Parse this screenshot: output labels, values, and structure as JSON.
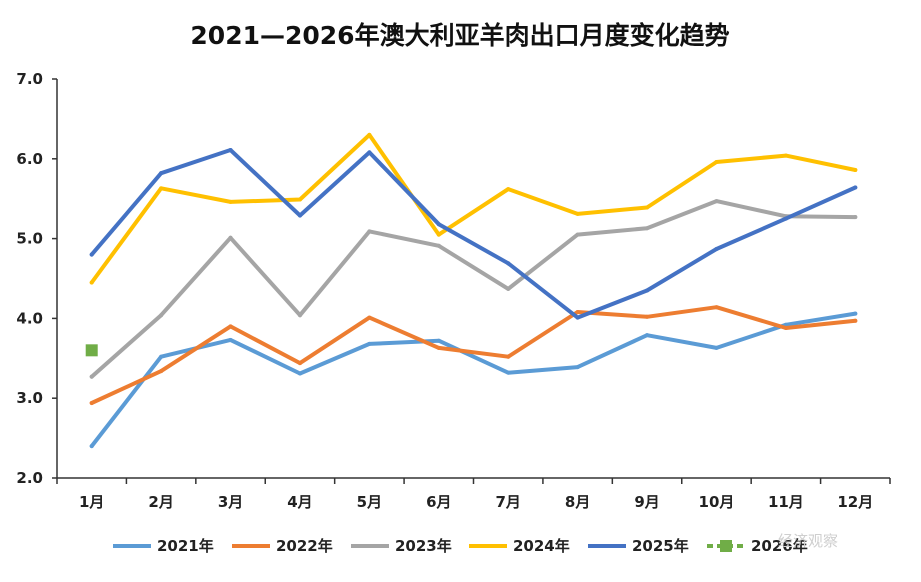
{
  "chart_data": {
    "type": "line",
    "title": "2021—2026年澳大利亚羊肉出口月度变化趋势",
    "xlabel": "",
    "ylabel": "",
    "ylim": [
      2.0,
      7.0
    ],
    "yticks": [
      "2.0",
      "3.0",
      "4.0",
      "5.0",
      "6.0",
      "7.0"
    ],
    "grid": false,
    "legend_position": "bottom",
    "categories": [
      "1月",
      "2月",
      "3月",
      "4月",
      "5月",
      "6月",
      "7月",
      "8月",
      "9月",
      "10月",
      "11月",
      "12月"
    ],
    "series": [
      {
        "name": "2021年",
        "color": "#5b9bd5",
        "values": [
          2.4,
          3.52,
          3.73,
          3.31,
          3.68,
          3.72,
          3.32,
          3.39,
          3.79,
          3.63,
          3.92,
          4.06
        ]
      },
      {
        "name": "2022年",
        "color": "#ed7d31",
        "values": [
          2.94,
          3.34,
          3.9,
          3.44,
          4.01,
          3.63,
          3.52,
          4.08,
          4.02,
          4.14,
          3.88,
          3.97
        ]
      },
      {
        "name": "2023年",
        "color": "#a5a5a5",
        "values": [
          3.27,
          4.04,
          5.01,
          4.04,
          5.09,
          4.91,
          4.37,
          5.05,
          5.13,
          5.47,
          5.28,
          5.27
        ]
      },
      {
        "name": "2024年",
        "color": "#ffc000",
        "values": [
          4.45,
          5.63,
          5.46,
          5.49,
          6.3,
          5.05,
          5.62,
          5.31,
          5.39,
          5.96,
          6.04,
          5.86
        ]
      },
      {
        "name": "2025年",
        "color": "#4472c4",
        "values": [
          4.8,
          5.82,
          6.11,
          5.29,
          6.08,
          5.18,
          4.69,
          4.01,
          4.35,
          4.87,
          5.25,
          5.64
        ]
      },
      {
        "name": "2026年",
        "color": "#70ad47",
        "values": [
          3.6,
          null,
          null,
          null,
          null,
          null,
          null,
          null,
          null,
          null,
          null,
          null
        ]
      }
    ]
  },
  "watermark": "经济观察"
}
